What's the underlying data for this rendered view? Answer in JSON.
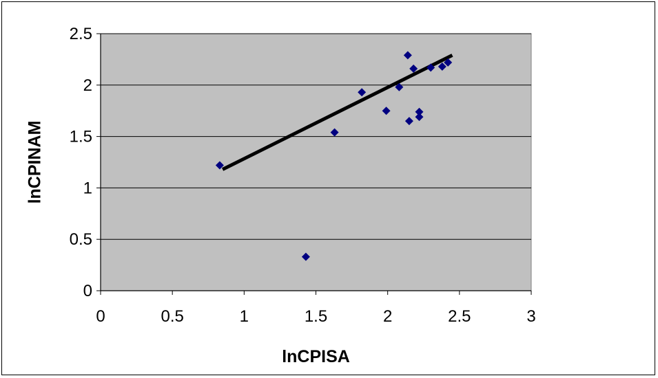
{
  "chart_data": {
    "type": "scatter",
    "xlabel": "lnCPISA",
    "ylabel": "lnCPINAM",
    "xlim": [
      0,
      3
    ],
    "ylim": [
      0,
      2.5
    ],
    "x_ticks": [
      0,
      0.5,
      1,
      1.5,
      2,
      2.5,
      3
    ],
    "y_ticks": [
      0,
      0.5,
      1,
      1.5,
      2,
      2.5
    ],
    "x_tick_labels": [
      "0",
      "0.5",
      "1",
      "1.5",
      "2",
      "2.5",
      "3"
    ],
    "y_tick_labels": [
      "0",
      "0.5",
      "1",
      "1.5",
      "2",
      "2.5"
    ],
    "grid": "horizontal",
    "plot_background": "#c0c0c0",
    "marker_color": "#000080",
    "marker": "diamond",
    "series": [
      {
        "points": [
          {
            "x": 0.83,
            "y": 1.22
          },
          {
            "x": 1.43,
            "y": 0.33
          },
          {
            "x": 1.63,
            "y": 1.54
          },
          {
            "x": 1.82,
            "y": 1.93
          },
          {
            "x": 1.99,
            "y": 1.75
          },
          {
            "x": 2.08,
            "y": 1.98
          },
          {
            "x": 2.14,
            "y": 2.29
          },
          {
            "x": 2.15,
            "y": 1.65
          },
          {
            "x": 2.18,
            "y": 2.16
          },
          {
            "x": 2.22,
            "y": 1.74
          },
          {
            "x": 2.22,
            "y": 1.69
          },
          {
            "x": 2.3,
            "y": 2.17
          },
          {
            "x": 2.38,
            "y": 2.18
          },
          {
            "x": 2.42,
            "y": 2.22
          }
        ]
      }
    ],
    "trendline": {
      "type": "linear",
      "color": "#000000",
      "from": {
        "x": 0.85,
        "y": 1.18
      },
      "to": {
        "x": 2.45,
        "y": 2.29
      }
    }
  }
}
